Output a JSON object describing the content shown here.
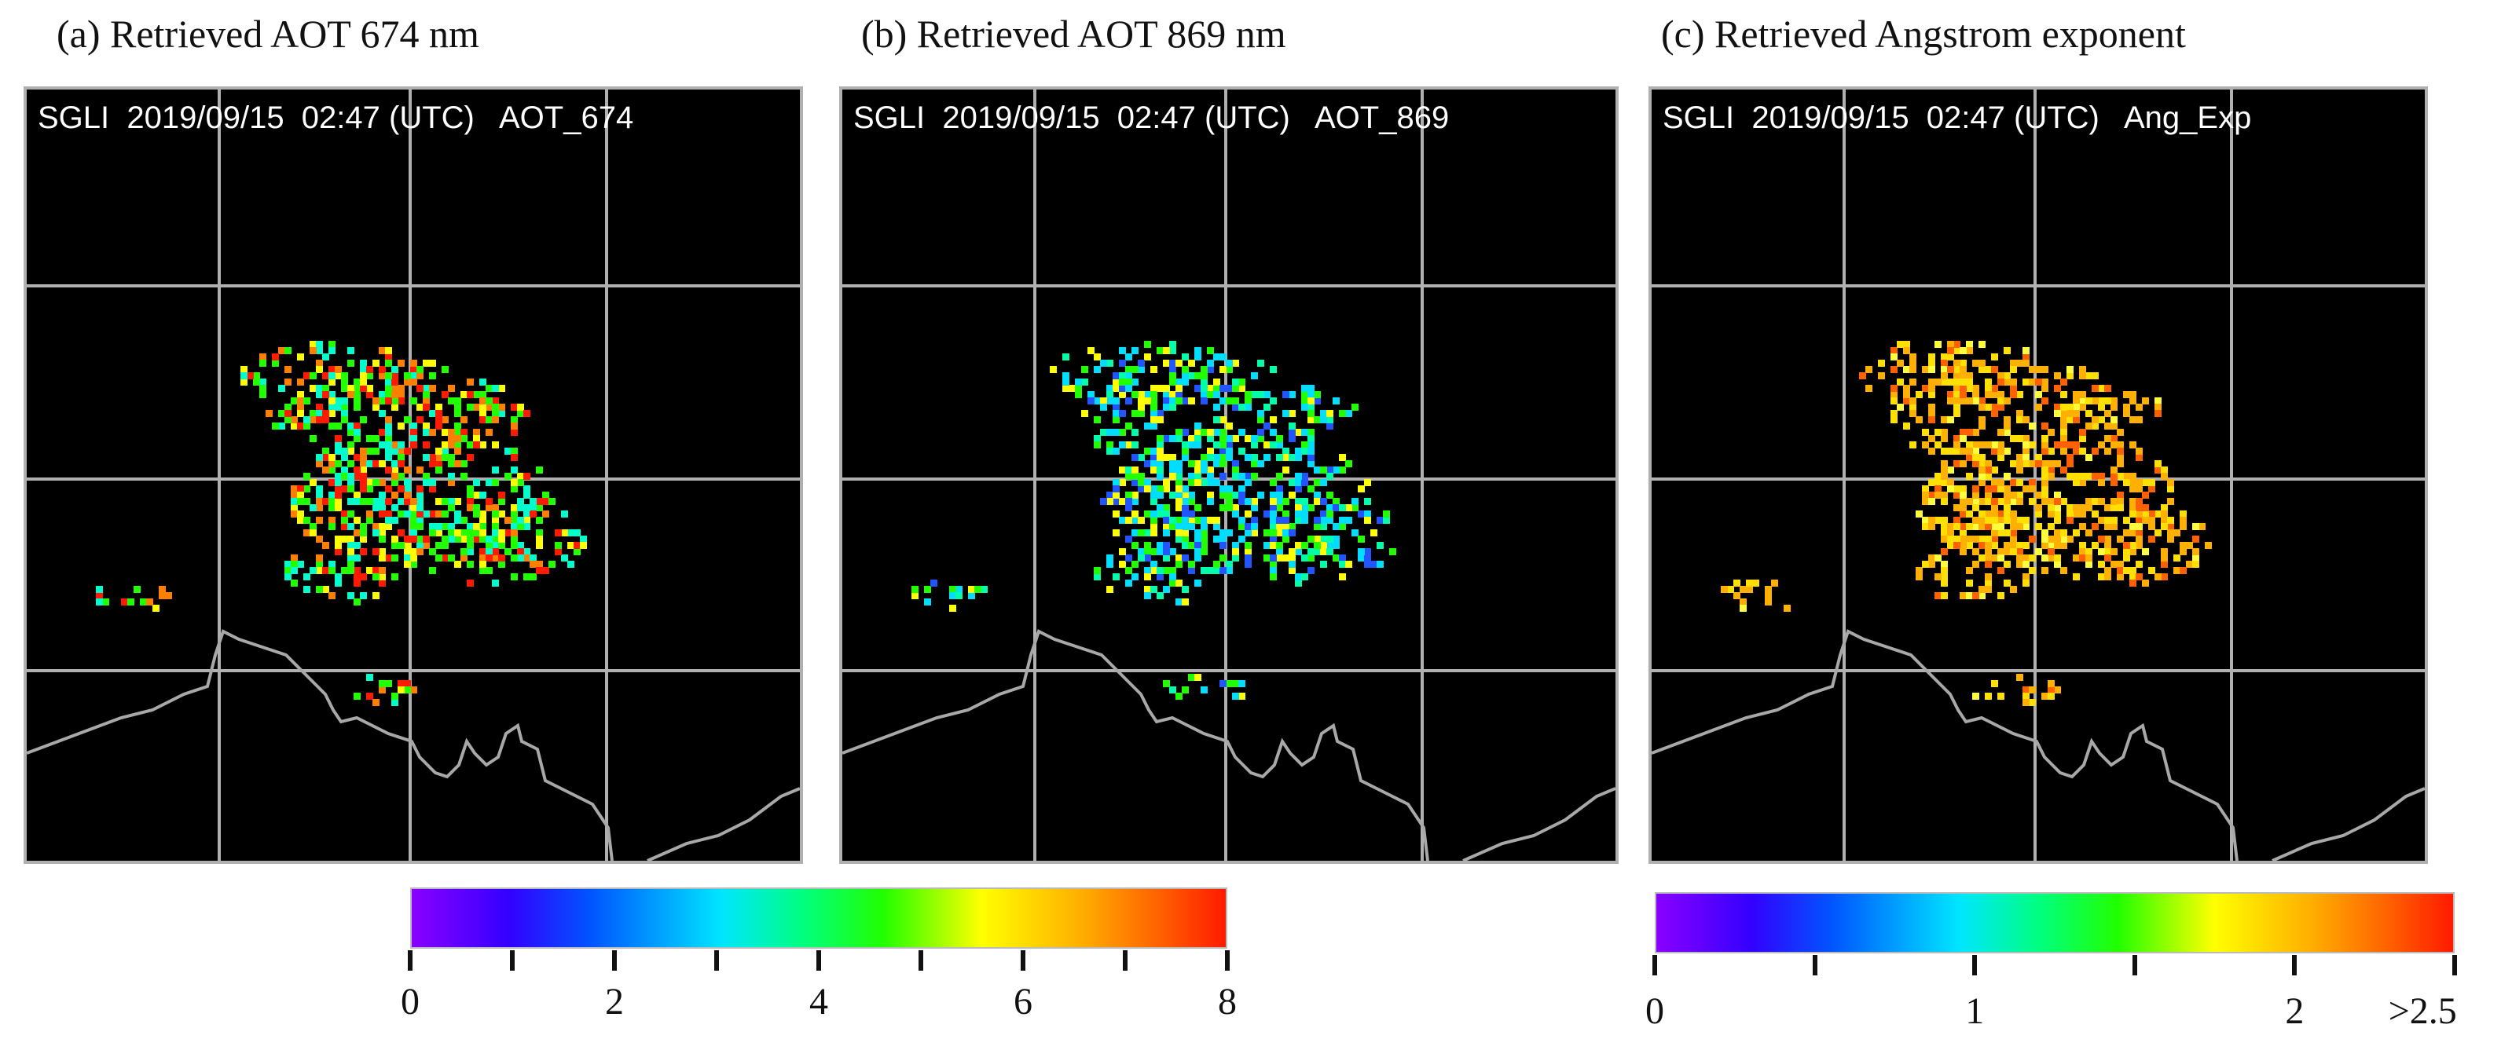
{
  "panels": [
    {
      "title": "(a) Retrieved AOT 674 nm",
      "header": "SGLI  2019/09/15  02:47 (UTC)   AOT_674"
    },
    {
      "title": "(b) Retrieved AOT 869 nm",
      "header": "SGLI  2019/09/15  02:47 (UTC)   AOT_869"
    },
    {
      "title": "(c) Retrieved Angstrom exponent",
      "header": "SGLI  2019/09/15  02:47 (UTC)   Ang_Exp"
    }
  ],
  "colorbar_aot": {
    "ticks": [
      "0",
      "2",
      "4",
      "6",
      "8"
    ],
    "min": 0,
    "max": 8
  },
  "colorbar_ang": {
    "ticks": [
      "0",
      "1",
      "2",
      ">2.5"
    ],
    "min": 0,
    "max": 2.5
  },
  "colors": {
    "map_bg": "#000000",
    "grid": "#b0b0b0",
    "coast": "#a8a8a8"
  }
}
